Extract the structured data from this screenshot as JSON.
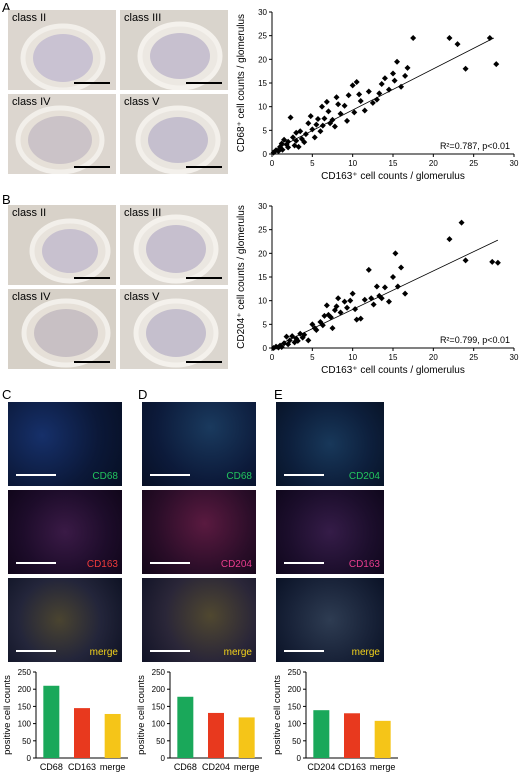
{
  "panels": {
    "A": {
      "letter": "A",
      "micro_labels": [
        "class II",
        "class III",
        "class IV",
        "class V"
      ]
    },
    "B": {
      "letter": "B",
      "micro_labels": [
        "class II",
        "class III",
        "class IV",
        "class V"
      ]
    },
    "C": {
      "letter": "C",
      "fluo_labels": [
        "CD68",
        "CD163",
        "merge"
      ],
      "label_colors": [
        "#22c55e",
        "#ef3b3b",
        "#f2d21b"
      ]
    },
    "D": {
      "letter": "D",
      "fluo_labels": [
        "CD68",
        "CD204",
        "merge"
      ],
      "label_colors": [
        "#22c55e",
        "#e83c8c",
        "#f2d21b"
      ]
    },
    "E": {
      "letter": "E",
      "fluo_labels": [
        "CD204",
        "CD163",
        "merge"
      ],
      "label_colors": [
        "#22c55e",
        "#e83c8c",
        "#f2d21b"
      ]
    }
  },
  "chart_data": [
    {
      "id": "A",
      "type": "scatter",
      "xlabel": "CD163⁺ cell counts / glomerulus",
      "ylabel": "CD68⁺ cell counts / glomerulus",
      "xlim": [
        0,
        30
      ],
      "ylim": [
        0,
        30
      ],
      "xticks": [
        "0",
        "5",
        "10",
        "15",
        "20",
        "25",
        "30"
      ],
      "yticks": [
        "0",
        "5",
        "10",
        "15",
        "20",
        "25",
        "30"
      ],
      "annotation": "R²=0.787, p<0.01",
      "fit": [
        [
          0,
          0.6
        ],
        [
          27.5,
          24.5
        ]
      ],
      "points": [
        [
          0.2,
          0.3
        ],
        [
          0.5,
          0.8
        ],
        [
          0.8,
          0.6
        ],
        [
          1,
          1.5
        ],
        [
          1.2,
          2.2
        ],
        [
          1.3,
          0.9
        ],
        [
          1.5,
          3
        ],
        [
          1.8,
          2
        ],
        [
          2,
          2.6
        ],
        [
          2,
          1.4
        ],
        [
          2.3,
          7.7
        ],
        [
          2.6,
          3.5
        ],
        [
          2.8,
          1.8
        ],
        [
          3,
          4.5
        ],
        [
          3,
          2.8
        ],
        [
          3.3,
          1.5
        ],
        [
          3.5,
          4.8
        ],
        [
          3.7,
          3.2
        ],
        [
          4,
          2.5
        ],
        [
          4.2,
          4.2
        ],
        [
          4.5,
          6.5
        ],
        [
          4.8,
          8
        ],
        [
          5,
          5.2
        ],
        [
          5.3,
          3.5
        ],
        [
          5.5,
          6.2
        ],
        [
          5.7,
          7.4
        ],
        [
          6,
          4.8
        ],
        [
          6.2,
          10
        ],
        [
          6.3,
          6
        ],
        [
          6.5,
          7.5
        ],
        [
          6.8,
          11
        ],
        [
          7,
          9
        ],
        [
          7.2,
          6.5
        ],
        [
          7.5,
          7.2
        ],
        [
          7.8,
          5.8
        ],
        [
          8,
          12
        ],
        [
          8.2,
          10.5
        ],
        [
          8.5,
          8.5
        ],
        [
          9,
          10.2
        ],
        [
          9.3,
          7
        ],
        [
          9.5,
          12.4
        ],
        [
          10,
          14.5
        ],
        [
          10.2,
          8.8
        ],
        [
          10.5,
          15.2
        ],
        [
          10.8,
          12.6
        ],
        [
          11,
          11.2
        ],
        [
          11.5,
          9.2
        ],
        [
          12,
          13.2
        ],
        [
          12.5,
          10.8
        ],
        [
          13,
          11.5
        ],
        [
          13.3,
          12.8
        ],
        [
          13.6,
          14.8
        ],
        [
          14,
          16
        ],
        [
          14.5,
          13.6
        ],
        [
          15,
          17
        ],
        [
          15.2,
          15.5
        ],
        [
          15.5,
          19.5
        ],
        [
          16,
          14.2
        ],
        [
          16.5,
          16.5
        ],
        [
          16.8,
          18.2
        ],
        [
          17.5,
          24.5
        ],
        [
          22,
          24.5
        ],
        [
          23,
          23.2
        ],
        [
          24,
          18
        ],
        [
          27,
          24.5
        ],
        [
          27.8,
          19
        ]
      ]
    },
    {
      "id": "B",
      "type": "scatter",
      "xlabel": "CD163⁺ cell counts / glomerulus",
      "ylabel": "CD204⁺ cell counts / glomerulus",
      "xlim": [
        0,
        30
      ],
      "ylim": [
        0,
        30
      ],
      "xticks": [
        "0",
        "5",
        "10",
        "15",
        "20",
        "25",
        "30"
      ],
      "yticks": [
        "0",
        "5",
        "10",
        "15",
        "20",
        "25",
        "30"
      ],
      "annotation": "R²=0.799, p<0.01",
      "fit": [
        [
          0,
          0
        ],
        [
          28,
          22.8
        ]
      ],
      "points": [
        [
          0.2,
          0
        ],
        [
          0.5,
          0.3
        ],
        [
          0.8,
          0.1
        ],
        [
          1,
          0.5
        ],
        [
          1.2,
          0.2
        ],
        [
          1.5,
          1
        ],
        [
          1.8,
          2.4
        ],
        [
          2,
          0.8
        ],
        [
          2.2,
          1.6
        ],
        [
          2.5,
          2.5
        ],
        [
          2.8,
          1.2
        ],
        [
          3,
          2
        ],
        [
          3.2,
          1.5
        ],
        [
          3.5,
          3
        ],
        [
          3.8,
          2.2
        ],
        [
          4,
          2.8
        ],
        [
          4.5,
          1.6
        ],
        [
          5,
          5
        ],
        [
          5.3,
          4.2
        ],
        [
          5.5,
          3.8
        ],
        [
          6,
          5.5
        ],
        [
          6.3,
          4.8
        ],
        [
          6.5,
          6.8
        ],
        [
          6.8,
          9
        ],
        [
          7,
          7
        ],
        [
          7.3,
          6.5
        ],
        [
          7.5,
          4.2
        ],
        [
          7.8,
          8
        ],
        [
          8,
          8.8
        ],
        [
          8.2,
          10.5
        ],
        [
          8.5,
          7.5
        ],
        [
          9,
          9.8
        ],
        [
          9.3,
          8.5
        ],
        [
          9.7,
          10
        ],
        [
          10,
          11.5
        ],
        [
          10.3,
          8.2
        ],
        [
          10.5,
          6
        ],
        [
          11,
          6.2
        ],
        [
          11.5,
          10.2
        ],
        [
          12,
          16.5
        ],
        [
          12.3,
          10.5
        ],
        [
          12.6,
          9.2
        ],
        [
          13,
          13
        ],
        [
          13.3,
          11
        ],
        [
          13.6,
          10.5
        ],
        [
          14,
          12.8
        ],
        [
          14.5,
          9.8
        ],
        [
          15,
          15
        ],
        [
          15.3,
          20
        ],
        [
          15.6,
          13
        ],
        [
          16,
          17
        ],
        [
          16.5,
          11.5
        ],
        [
          22,
          23
        ],
        [
          23.5,
          26.5
        ],
        [
          24,
          18.5
        ],
        [
          27.3,
          18.2
        ],
        [
          28,
          18
        ]
      ]
    }
  ],
  "bars": [
    {
      "id": "C",
      "ylabel": "positive cell counts",
      "yticks": [
        "0",
        "50",
        "100",
        "150",
        "200",
        "250"
      ],
      "ymax": 250,
      "categories": [
        "CD68",
        "CD163",
        "merge"
      ],
      "values": [
        210,
        145,
        128
      ],
      "colors": [
        "#1aa85a",
        "#e8391e",
        "#f5c518"
      ]
    },
    {
      "id": "D",
      "ylabel": "positive cell counts",
      "yticks": [
        "0",
        "50",
        "100",
        "150",
        "200",
        "250"
      ],
      "ymax": 250,
      "categories": [
        "CD68",
        "CD204",
        "merge"
      ],
      "values": [
        178,
        131,
        118
      ],
      "colors": [
        "#1aa85a",
        "#e8391e",
        "#f5c518"
      ]
    },
    {
      "id": "E",
      "ylabel": "positive cell counts",
      "yticks": [
        "0",
        "50",
        "100",
        "150",
        "200",
        "250"
      ],
      "ymax": 250,
      "categories": [
        "CD204",
        "CD163",
        "merge"
      ],
      "values": [
        139,
        130,
        108
      ],
      "colors": [
        "#1aa85a",
        "#e8391e",
        "#f5c518"
      ]
    }
  ]
}
